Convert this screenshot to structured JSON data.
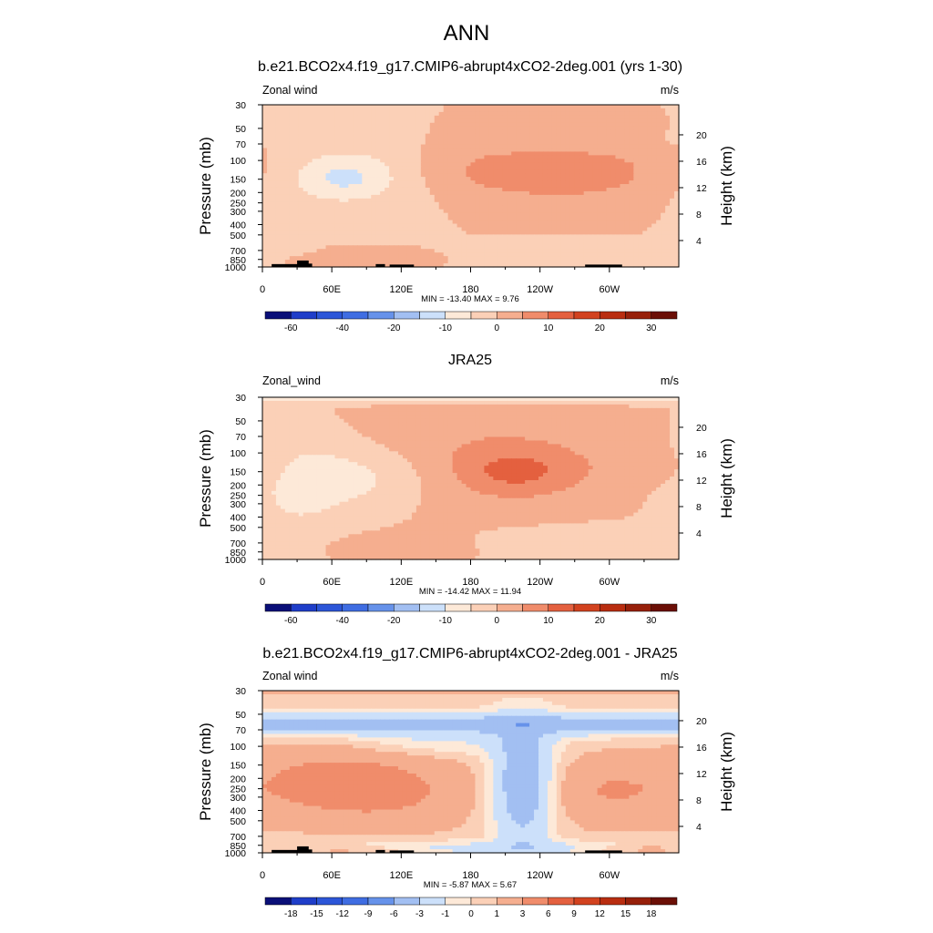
{
  "figure": {
    "title": "ANN",
    "x_ticks": [
      "0",
      "60E",
      "120E",
      "180",
      "120W",
      "60W"
    ],
    "x_tick_lon": [
      0,
      60,
      120,
      180,
      240,
      300
    ],
    "x_range": [
      0,
      360
    ],
    "p_ticks": [
      30,
      50,
      70,
      100,
      150,
      200,
      250,
      300,
      400,
      500,
      700,
      850,
      1000
    ],
    "p_range": [
      30,
      1000
    ],
    "height_ticks_km": [
      4,
      8,
      12,
      16,
      20
    ],
    "scale_height_km": 7
  },
  "chart_data": [
    {
      "type": "heatmap",
      "title": "b.e21.BCO2x4.f19_g17.CMIP6-abrupt4xCO2-2deg.001 (yrs 1-30)",
      "left_label": "Zonal wind",
      "right_label": "m/s",
      "ylabel": "Pressure (mb)",
      "y2label": "Height (km)",
      "stats_text": "MIN = -13.40  MAX =   9.76",
      "min": -13.4,
      "max": 9.76,
      "background_level": 0,
      "levels": [
        "-60",
        "-40",
        "-20",
        "-10",
        "0",
        "10",
        "20",
        "30"
      ],
      "levels_tick_box": [
        1,
        3,
        5,
        7,
        9,
        11,
        13,
        15
      ],
      "colors": [
        "#0a0f78",
        "#1f3ec9",
        "#2c56d8",
        "#3f6de2",
        "#6692ea",
        "#a2bff2",
        "#cce0fa",
        "#fde9d8",
        "#fbd0b7",
        "#f5ae8f",
        "#f08c6b",
        "#e4603f",
        "#d2421f",
        "#b92d10",
        "#97200a",
        "#6b0f06"
      ],
      "bins": [
        -70,
        -60,
        -50,
        -40,
        -30,
        -20,
        -15,
        -10,
        -5,
        0,
        5,
        10,
        15,
        20,
        25,
        30
      ],
      "features": [
        {
          "lon": 75,
          "p": 140,
          "slon": 48,
          "sz": 0.55,
          "amp": -7
        },
        {
          "lon": 70,
          "p": 145,
          "slon": 24,
          "sz": 0.25,
          "amp": -5
        },
        {
          "lon": 200,
          "p": 125,
          "slon": 52,
          "sz": 0.45,
          "amp": 6
        },
        {
          "lon": 305,
          "p": 125,
          "slon": 45,
          "sz": 0.45,
          "amp": 5
        },
        {
          "lon": 255,
          "p": 145,
          "slon": 35,
          "sz": 0.35,
          "amp": 3
        },
        {
          "lon": 100,
          "p": 820,
          "slon": 45,
          "sz": 0.12,
          "amp": 5
        },
        {
          "lon": 250,
          "p": 800,
          "slon": 70,
          "sz": 0.15,
          "amp": -5
        },
        {
          "lon": 20,
          "p": 650,
          "slon": 15,
          "sz": 0.1,
          "amp": -4
        },
        {
          "lon": 12,
          "p": 60,
          "slon": 12,
          "sz": 0.1,
          "amp": -3
        }
      ],
      "topography": [
        {
          "lon0": 8,
          "lon1": 35,
          "pTop": 940
        },
        {
          "lon0": 30,
          "lon1": 40,
          "pTop": 870
        },
        {
          "lon0": 35,
          "lon1": 43,
          "pTop": 930
        },
        {
          "lon0": 98,
          "lon1": 106,
          "pTop": 940
        },
        {
          "lon0": 110,
          "lon1": 131,
          "pTop": 950
        },
        {
          "lon0": 279,
          "lon1": 311,
          "pTop": 950
        }
      ]
    },
    {
      "type": "heatmap",
      "title": "JRA25",
      "left_label": "Zonal_wind",
      "right_label": "m/s",
      "ylabel": "Pressure (mb)",
      "y2label": "Height (km)",
      "stats_text": "MIN = -14.42  MAX =  11.94",
      "min": -14.42,
      "max": 11.94,
      "background_level": 0,
      "levels": [
        "-60",
        "-40",
        "-20",
        "-10",
        "0",
        "10",
        "20",
        "30"
      ],
      "levels_tick_box": [
        1,
        3,
        5,
        7,
        9,
        11,
        13,
        15
      ],
      "colors": [
        "#0a0f78",
        "#1f3ec9",
        "#2c56d8",
        "#3f6de2",
        "#6692ea",
        "#a2bff2",
        "#cce0fa",
        "#fde9d8",
        "#fbd0b7",
        "#f5ae8f",
        "#f08c6b",
        "#e4603f",
        "#d2421f",
        "#b92d10",
        "#97200a",
        "#6b0f06"
      ],
      "bins": [
        -70,
        -60,
        -50,
        -40,
        -30,
        -20,
        -15,
        -10,
        -5,
        0,
        5,
        10,
        15,
        20,
        25,
        30
      ],
      "features": [
        {
          "lon": 200,
          "p": 130,
          "slon": 80,
          "sz": 0.7,
          "amp": 7
        },
        {
          "lon": 220,
          "p": 150,
          "slon": 30,
          "sz": 0.3,
          "amp": 6
        },
        {
          "lon": 340,
          "p": 140,
          "slon": 28,
          "sz": 0.3,
          "amp": 4
        },
        {
          "lon": 80,
          "p": 170,
          "slon": 55,
          "sz": 0.5,
          "amp": -8
        },
        {
          "lon": 30,
          "p": 250,
          "slon": 30,
          "sz": 0.9,
          "amp": -4
        },
        {
          "lon": 300,
          "p": 700,
          "slon": 80,
          "sz": 0.25,
          "amp": -5
        },
        {
          "lon": 100,
          "p": 750,
          "slon": 60,
          "sz": 0.2,
          "amp": 4
        },
        {
          "lon": 180,
          "p": 30,
          "slon": 500,
          "sz": 0.08,
          "amp": -9
        }
      ],
      "topography": []
    },
    {
      "type": "heatmap",
      "title": "b.e21.BCO2x4.f19_g17.CMIP6-abrupt4xCO2-2deg.001 - JRA25",
      "left_label": "Zonal wind",
      "right_label": "m/s",
      "ylabel": "Pressure (mb)",
      "y2label": "Height (km)",
      "stats_text": "MIN =  -5.87  MAX =   5.67",
      "min": -5.87,
      "max": 5.67,
      "background_level": 0.5,
      "levels": [
        "-18",
        "-15",
        "-12",
        "-9",
        "-6",
        "-3",
        "-1",
        "0",
        "1",
        "3",
        "6",
        "9",
        "12",
        "15",
        "18"
      ],
      "levels_tick_box": [
        1,
        2,
        3,
        4,
        5,
        6,
        7,
        8,
        9,
        10,
        11,
        12,
        13,
        14,
        15
      ],
      "colors": [
        "#0a0f78",
        "#1f3ec9",
        "#2c56d8",
        "#3f6de2",
        "#6692ea",
        "#a2bff2",
        "#cce0fa",
        "#fde9d8",
        "#fbd0b7",
        "#f5ae8f",
        "#f08c6b",
        "#e4603f",
        "#d2421f",
        "#b92d10",
        "#97200a",
        "#6b0f06"
      ],
      "bins": [
        -21,
        -18,
        -15,
        -12,
        -9,
        -6,
        -3,
        -1,
        0,
        1,
        3,
        6,
        9,
        12,
        15,
        18
      ],
      "features": [
        {
          "lon": 180,
          "p": 62,
          "slon": 700,
          "sz": 0.17,
          "amp": -4.5
        },
        {
          "lon": 150,
          "p": 95,
          "slon": 60,
          "sz": 0.2,
          "amp": -1.5
        },
        {
          "lon": 180,
          "p": 30,
          "slon": 500,
          "sz": 0.06,
          "amp": 2.5
        },
        {
          "lon": 50,
          "p": 220,
          "slon": 45,
          "sz": 0.55,
          "amp": 3
        },
        {
          "lon": 120,
          "p": 260,
          "slon": 45,
          "sz": 0.55,
          "amp": 2.5
        },
        {
          "lon": 300,
          "p": 260,
          "slon": 40,
          "sz": 0.5,
          "amp": 2.5
        },
        {
          "lon": 225,
          "p": 230,
          "slon": 18,
          "sz": 0.9,
          "amp": -6
        },
        {
          "lon": 180,
          "p": 900,
          "slon": 200,
          "sz": 0.12,
          "amp": -2
        },
        {
          "lon": 70,
          "p": 930,
          "slon": 40,
          "sz": 0.08,
          "amp": 2
        },
        {
          "lon": 330,
          "p": 920,
          "slon": 30,
          "sz": 0.08,
          "amp": 2
        }
      ],
      "topography": [
        {
          "lon0": 8,
          "lon1": 35,
          "pTop": 940
        },
        {
          "lon0": 30,
          "lon1": 40,
          "pTop": 870
        },
        {
          "lon0": 35,
          "lon1": 43,
          "pTop": 930
        },
        {
          "lon0": 98,
          "lon1": 106,
          "pTop": 940
        },
        {
          "lon0": 110,
          "lon1": 131,
          "pTop": 950
        },
        {
          "lon0": 279,
          "lon1": 311,
          "pTop": 950
        }
      ]
    }
  ]
}
